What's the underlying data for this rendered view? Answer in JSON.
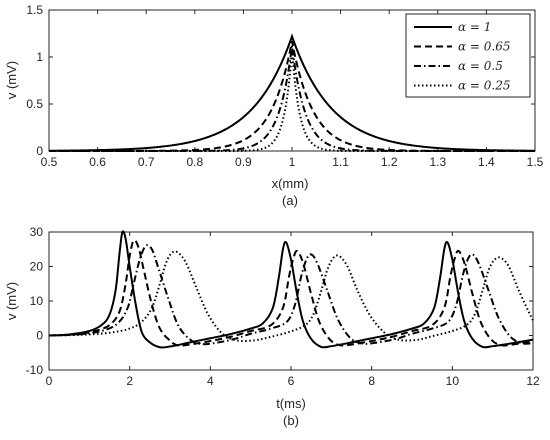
{
  "chart_data": [
    {
      "type": "line",
      "caption": "(a)",
      "xlabel": "x(mm)",
      "ylabel": "v (mV)",
      "xlim": [
        0.5,
        1.5
      ],
      "ylim": [
        0,
        1.5
      ],
      "xticks": [
        "0.5",
        "0.6",
        "0.7",
        "0.8",
        "0.9",
        "1",
        "1.1",
        "1.2",
        "1.3",
        "1.4",
        "1.5"
      ],
      "yticks": [
        "0",
        "0.5",
        "1",
        "1.5"
      ],
      "grid": false,
      "legend_position": "top-right",
      "series": [
        {
          "name": "α = 1",
          "style": "solid",
          "peak": 1.22,
          "decay_mm": 0.082
        },
        {
          "name": "α = 0.65",
          "style": "dashed",
          "peak": 1.17,
          "decay_mm": 0.043
        },
        {
          "name": "α = 0.5",
          "style": "dashdot",
          "peak": 1.12,
          "decay_mm": 0.027
        },
        {
          "name": "α = 0.25",
          "style": "dotted",
          "peak": 1.07,
          "decay_mm": 0.016
        }
      ]
    },
    {
      "type": "line",
      "caption": "(b)",
      "xlabel": "t(ms)",
      "ylabel": "v (mV)",
      "xlim": [
        0,
        12
      ],
      "ylim": [
        -10,
        30
      ],
      "xticks": [
        "0",
        "2",
        "4",
        "6",
        "8",
        "10",
        "12"
      ],
      "yticks": [
        "-10",
        "0",
        "10",
        "20",
        "30"
      ],
      "grid": false,
      "series": [
        {
          "name": "α = 1",
          "style": "solid",
          "points": [
            [
              0,
              0
            ],
            [
              0.5,
              0.3
            ],
            [
              1,
              1.3
            ],
            [
              1.3,
              3
            ],
            [
              1.5,
              6
            ],
            [
              1.65,
              13
            ],
            [
              1.75,
              24
            ],
            [
              1.82,
              30
            ],
            [
              1.9,
              28
            ],
            [
              2,
              20
            ],
            [
              2.15,
              9
            ],
            [
              2.3,
              1
            ],
            [
              2.5,
              -2
            ],
            [
              2.75,
              -3.4
            ],
            [
              3,
              -3.2
            ],
            [
              3.5,
              -2
            ],
            [
              4,
              -0.8
            ],
            [
              4.5,
              0.4
            ],
            [
              5,
              2
            ],
            [
              5.3,
              3.5
            ],
            [
              5.55,
              8
            ],
            [
              5.7,
              17
            ],
            [
              5.8,
              25
            ],
            [
              5.88,
              27
            ],
            [
              6,
              22
            ],
            [
              6.15,
              12
            ],
            [
              6.3,
              4
            ],
            [
              6.5,
              -1
            ],
            [
              6.75,
              -3.3
            ],
            [
              7,
              -3.1
            ],
            [
              7.5,
              -2
            ],
            [
              8,
              -0.8
            ],
            [
              8.5,
              0.4
            ],
            [
              9,
              2
            ],
            [
              9.3,
              3.5
            ],
            [
              9.55,
              8
            ],
            [
              9.7,
              17
            ],
            [
              9.8,
              25
            ],
            [
              9.88,
              27
            ],
            [
              10,
              22
            ],
            [
              10.15,
              12
            ],
            [
              10.3,
              4
            ],
            [
              10.5,
              -1
            ],
            [
              10.75,
              -3.3
            ],
            [
              11,
              -3.1
            ],
            [
              11.5,
              -2.2
            ],
            [
              12,
              -1.2
            ]
          ]
        },
        {
          "name": "α = 0.65",
          "style": "dashed",
          "points": [
            [
              0,
              0
            ],
            [
              0.6,
              0.3
            ],
            [
              1.1,
              1.2
            ],
            [
              1.5,
              3
            ],
            [
              1.75,
              7
            ],
            [
              1.9,
              15
            ],
            [
              2,
              23
            ],
            [
              2.1,
              27.5
            ],
            [
              2.22,
              25.5
            ],
            [
              2.35,
              19
            ],
            [
              2.55,
              9
            ],
            [
              2.75,
              2
            ],
            [
              3,
              -1.5
            ],
            [
              3.2,
              -2.9
            ],
            [
              3.5,
              -2.6
            ],
            [
              4,
              -1.6
            ],
            [
              4.5,
              -0.4
            ],
            [
              5,
              1.3
            ],
            [
              5.5,
              3
            ],
            [
              5.8,
              8
            ],
            [
              5.95,
              17
            ],
            [
              6.05,
              22
            ],
            [
              6.15,
              24.5
            ],
            [
              6.3,
              21
            ],
            [
              6.5,
              12
            ],
            [
              6.7,
              4
            ],
            [
              6.95,
              -1
            ],
            [
              7.2,
              -2.8
            ],
            [
              7.5,
              -2.6
            ],
            [
              8,
              -1.6
            ],
            [
              8.5,
              -0.4
            ],
            [
              9,
              1.3
            ],
            [
              9.5,
              3
            ],
            [
              9.8,
              8
            ],
            [
              9.95,
              17
            ],
            [
              10.05,
              22
            ],
            [
              10.15,
              24.5
            ],
            [
              10.3,
              21
            ],
            [
              10.5,
              12
            ],
            [
              10.7,
              4
            ],
            [
              10.95,
              -1
            ],
            [
              11.2,
              -2.8
            ],
            [
              11.5,
              -2.6
            ],
            [
              12,
              -1.6
            ]
          ]
        },
        {
          "name": "α = 0.5",
          "style": "dashdot",
          "points": [
            [
              0,
              0
            ],
            [
              0.7,
              0.3
            ],
            [
              1.3,
              1.3
            ],
            [
              1.7,
              3.5
            ],
            [
              1.95,
              8
            ],
            [
              2.1,
              15
            ],
            [
              2.25,
              22
            ],
            [
              2.4,
              26
            ],
            [
              2.55,
              25
            ],
            [
              2.7,
              20
            ],
            [
              2.95,
              11
            ],
            [
              3.2,
              3
            ],
            [
              3.5,
              -1.2
            ],
            [
              3.8,
              -2.5
            ],
            [
              4.2,
              -2
            ],
            [
              4.6,
              -1
            ],
            [
              5,
              0.5
            ],
            [
              5.5,
              2
            ],
            [
              5.9,
              4
            ],
            [
              6.1,
              9
            ],
            [
              6.25,
              17
            ],
            [
              6.38,
              22
            ],
            [
              6.5,
              23.5
            ],
            [
              6.65,
              21
            ],
            [
              6.9,
              13
            ],
            [
              7.15,
              5
            ],
            [
              7.45,
              -0.5
            ],
            [
              7.75,
              -2.3
            ],
            [
              8.1,
              -2.1
            ],
            [
              8.6,
              -1
            ],
            [
              9,
              0.5
            ],
            [
              9.5,
              2
            ],
            [
              9.9,
              4
            ],
            [
              10.1,
              9
            ],
            [
              10.25,
              17
            ],
            [
              10.38,
              22
            ],
            [
              10.5,
              23.5
            ],
            [
              10.65,
              21
            ],
            [
              10.9,
              13
            ],
            [
              11.15,
              5
            ],
            [
              11.45,
              -0.5
            ],
            [
              11.75,
              -2.3
            ],
            [
              12,
              -2.2
            ]
          ]
        },
        {
          "name": "α = 0.25",
          "style": "dotted",
          "points": [
            [
              0,
              0
            ],
            [
              0.8,
              0.2
            ],
            [
              1.5,
              0.8
            ],
            [
              2,
              2
            ],
            [
              2.3,
              4
            ],
            [
              2.55,
              8
            ],
            [
              2.75,
              15
            ],
            [
              2.9,
              21
            ],
            [
              3.05,
              24
            ],
            [
              3.2,
              24
            ],
            [
              3.4,
              21
            ],
            [
              3.65,
              14
            ],
            [
              3.95,
              6
            ],
            [
              4.3,
              0.5
            ],
            [
              4.65,
              -1.4
            ],
            [
              5.1,
              -1.4
            ],
            [
              5.5,
              -0.4
            ],
            [
              6,
              1.2
            ],
            [
              6.35,
              3
            ],
            [
              6.55,
              6
            ],
            [
              6.75,
              13
            ],
            [
              6.9,
              19
            ],
            [
              7.05,
              22.5
            ],
            [
              7.2,
              23
            ],
            [
              7.4,
              20
            ],
            [
              7.65,
              13
            ],
            [
              7.95,
              6
            ],
            [
              8.3,
              1
            ],
            [
              8.65,
              -1.2
            ],
            [
              9.1,
              -1.3
            ],
            [
              9.5,
              -0.2
            ],
            [
              10,
              1.3
            ],
            [
              10.35,
              3
            ],
            [
              10.55,
              6
            ],
            [
              10.75,
              13
            ],
            [
              10.9,
              19
            ],
            [
              11.05,
              22
            ],
            [
              11.2,
              22.5
            ],
            [
              11.4,
              20
            ],
            [
              11.65,
              13
            ],
            [
              11.95,
              5.5
            ],
            [
              12,
              4.5
            ]
          ]
        }
      ]
    }
  ]
}
